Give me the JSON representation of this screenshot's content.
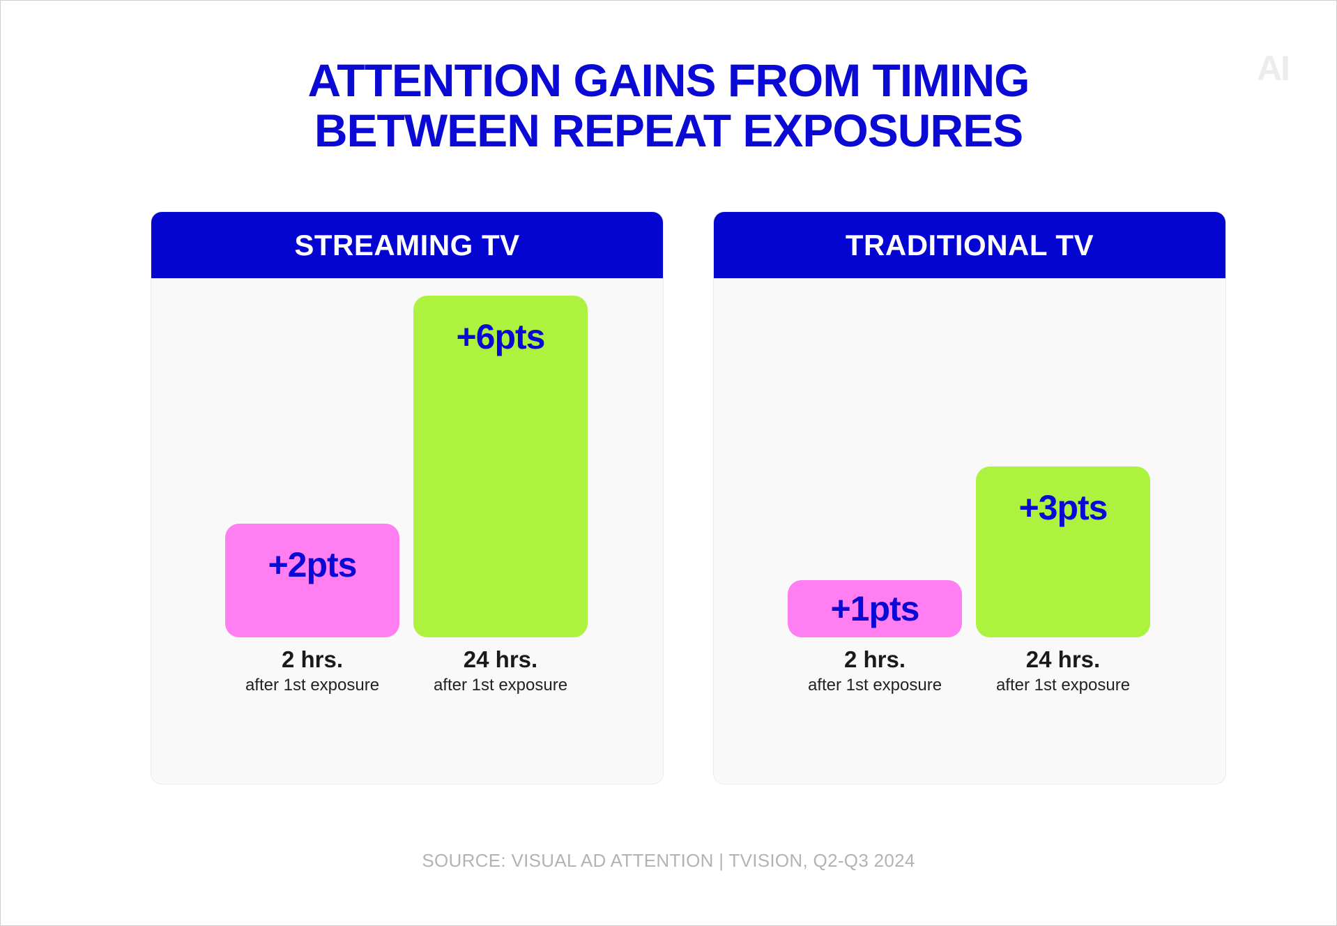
{
  "title_lines": [
    "ATTENTION GAINS FROM TIMING",
    "BETWEEN REPEAT EXPOSURES"
  ],
  "logo_text": "AI",
  "source": "SOURCE: VISUAL AD ATTENTION | TVISION, Q2-Q3 2024",
  "colors": {
    "title": "#0a0ad4",
    "header": "#0505d2",
    "pink": "#ff7ff3",
    "green": "#adf23e"
  },
  "chart_data": [
    {
      "type": "bar",
      "title": "STREAMING TV",
      "categories": [
        "2 hrs.",
        "24 hrs."
      ],
      "category_notes": [
        "after 1st exposure",
        "after 1st exposure"
      ],
      "values": [
        2,
        6
      ],
      "value_labels": [
        "+2pts",
        "+6pts"
      ],
      "bar_colors": [
        "#ff7ff3",
        "#adf23e"
      ],
      "ylim": [
        0,
        6
      ]
    },
    {
      "type": "bar",
      "title": "TRADITIONAL TV",
      "categories": [
        "2 hrs.",
        "24 hrs."
      ],
      "category_notes": [
        "after 1st exposure",
        "after 1st exposure"
      ],
      "values": [
        1,
        3
      ],
      "value_labels": [
        "+1pts",
        "+3pts"
      ],
      "bar_colors": [
        "#ff7ff3",
        "#adf23e"
      ],
      "ylim": [
        0,
        6
      ]
    }
  ]
}
